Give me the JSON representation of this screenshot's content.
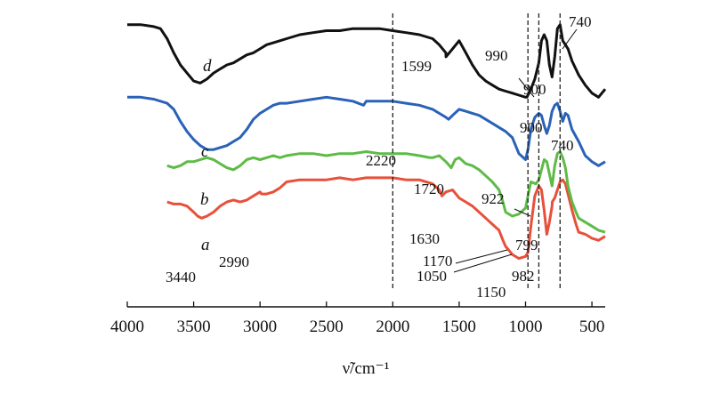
{
  "chart_data": {
    "type": "line",
    "xlabel": "ν̃/cm⁻¹",
    "x_reversed": true,
    "xlim": [
      4000,
      400
    ],
    "xticks": [
      4000,
      3500,
      3000,
      2500,
      2000,
      1500,
      1000,
      500
    ],
    "y_axis_visible": false,
    "grid": false,
    "legend": "curve labels a–d placed next to each curve",
    "series": [
      {
        "name": "a",
        "color": "#e8503a",
        "x": [
          3700,
          3650,
          3600,
          3550,
          3500,
          3470,
          3440,
          3400,
          3350,
          3300,
          3250,
          3200,
          3150,
          3100,
          3050,
          3000,
          2990,
          2950,
          2900,
          2850,
          2800,
          2700,
          2600,
          2500,
          2400,
          2300,
          2200,
          2100,
          2000,
          1900,
          1800,
          1700,
          1650,
          1630,
          1600,
          1550,
          1500,
          1450,
          1400,
          1350,
          1300,
          1250,
          1200,
          1170,
          1150,
          1100,
          1050,
          1000,
          982,
          960,
          930,
          900,
          880,
          860,
          840,
          820,
          800,
          799,
          780,
          760,
          740,
          720,
          700,
          680,
          650,
          620,
          600,
          550,
          500,
          450,
          400
        ],
        "y": [
          52,
          51,
          51,
          50,
          47,
          45,
          44,
          45,
          47,
          50,
          52,
          53,
          52,
          53,
          55,
          57,
          56,
          56,
          57,
          59,
          62,
          63,
          63,
          63,
          64,
          63,
          64,
          64,
          64,
          63,
          63,
          61,
          58,
          55,
          57,
          58,
          54,
          52,
          50,
          47,
          44,
          41,
          38,
          33,
          30,
          26,
          24,
          25,
          27,
          40,
          55,
          60,
          58,
          48,
          36,
          42,
          50,
          52,
          54,
          58,
          62,
          63,
          61,
          56,
          48,
          41,
          37,
          36,
          34,
          33,
          35
        ]
      },
      {
        "name": "b",
        "color": "#5dbb46",
        "x": [
          3700,
          3650,
          3600,
          3550,
          3500,
          3450,
          3400,
          3350,
          3300,
          3250,
          3200,
          3150,
          3100,
          3050,
          3000,
          2950,
          2900,
          2850,
          2800,
          2700,
          2600,
          2500,
          2400,
          2300,
          2200,
          2100,
          2000,
          1900,
          1800,
          1720,
          1700,
          1650,
          1600,
          1560,
          1530,
          1500,
          1450,
          1400,
          1350,
          1300,
          1250,
          1200,
          1170,
          1150,
          1100,
          1050,
          1000,
          982,
          960,
          922,
          900,
          880,
          860,
          840,
          820,
          800,
          780,
          760,
          740,
          720,
          700,
          680,
          650,
          620,
          600,
          550,
          500,
          450,
          400
        ],
        "y": [
          70,
          69,
          70,
          72,
          72,
          73,
          74,
          73,
          71,
          69,
          68,
          70,
          73,
          74,
          73,
          74,
          75,
          74,
          75,
          76,
          76,
          75,
          76,
          76,
          77,
          76,
          76,
          76,
          75,
          74,
          74,
          75,
          72,
          69,
          73,
          74,
          71,
          70,
          68,
          65,
          62,
          58,
          52,
          47,
          45,
          46,
          49,
          55,
          62,
          61,
          63,
          68,
          73,
          72,
          66,
          60,
          70,
          76,
          77,
          74,
          69,
          60,
          52,
          47,
          44,
          42,
          40,
          38,
          37
        ]
      },
      {
        "name": "c",
        "color": "#2a62b8",
        "x": [
          4000,
          3900,
          3800,
          3700,
          3650,
          3600,
          3550,
          3500,
          3450,
          3400,
          3350,
          3300,
          3250,
          3200,
          3150,
          3100,
          3050,
          3000,
          2950,
          2900,
          2850,
          2800,
          2700,
          2600,
          2500,
          2400,
          2300,
          2220,
          2200,
          2100,
          2000,
          1900,
          1800,
          1700,
          1650,
          1600,
          1580,
          1550,
          1500,
          1450,
          1400,
          1350,
          1300,
          1250,
          1200,
          1150,
          1100,
          1050,
          1000,
          982,
          960,
          930,
          900,
          880,
          860,
          840,
          820,
          800,
          780,
          760,
          740,
          720,
          700,
          680,
          650,
          600,
          550,
          500,
          450,
          400
        ],
        "y": [
          104,
          104,
          103,
          101,
          98,
          92,
          87,
          83,
          80,
          78,
          78,
          79,
          80,
          82,
          84,
          88,
          93,
          96,
          98,
          100,
          101,
          101,
          102,
          103,
          104,
          103,
          102,
          100,
          102,
          102,
          102,
          101,
          100,
          98,
          96,
          94,
          93,
          95,
          98,
          97,
          96,
          95,
          93,
          91,
          89,
          87,
          84,
          76,
          73,
          78,
          88,
          94,
          96,
          95,
          90,
          86,
          90,
          97,
          100,
          101,
          97,
          92,
          96,
          95,
          88,
          82,
          75,
          72,
          70,
          72
        ]
      },
      {
        "name": "d",
        "color": "#111111",
        "x": [
          4000,
          3900,
          3800,
          3750,
          3700,
          3650,
          3600,
          3550,
          3500,
          3450,
          3400,
          3350,
          3300,
          3250,
          3200,
          3150,
          3100,
          3050,
          3000,
          2950,
          2900,
          2850,
          2800,
          2700,
          2600,
          2500,
          2400,
          2300,
          2200,
          2100,
          2000,
          1900,
          1800,
          1700,
          1650,
          1600,
          1599,
          1550,
          1500,
          1450,
          1400,
          1350,
          1300,
          1250,
          1200,
          1150,
          1100,
          1050,
          1000,
          990,
          960,
          930,
          900,
          880,
          860,
          840,
          820,
          800,
          780,
          760,
          740,
          720,
          700,
          680,
          650,
          600,
          550,
          500,
          450,
          400
        ],
        "y": [
          140,
          140,
          139,
          138,
          133,
          126,
          120,
          116,
          112,
          111,
          113,
          116,
          118,
          120,
          121,
          123,
          125,
          126,
          128,
          130,
          131,
          132,
          133,
          135,
          136,
          137,
          137,
          138,
          138,
          138,
          137,
          136,
          135,
          133,
          130,
          126,
          124,
          128,
          132,
          126,
          120,
          115,
          112,
          110,
          108,
          107,
          106,
          105,
          104,
          104,
          108,
          113,
          121,
          132,
          135,
          132,
          120,
          114,
          124,
          138,
          140,
          132,
          130,
          128,
          122,
          115,
          110,
          106,
          104,
          108
        ]
      }
    ],
    "reference_lines": [
      2000,
      982,
      900,
      740
    ],
    "annotations": [
      "3440",
      "2990",
      "1630",
      "1170",
      "1050",
      "1150",
      "982",
      "799",
      "1720",
      "922",
      "2220",
      "900",
      "740",
      "1599",
      "990",
      "900",
      "740"
    ]
  }
}
